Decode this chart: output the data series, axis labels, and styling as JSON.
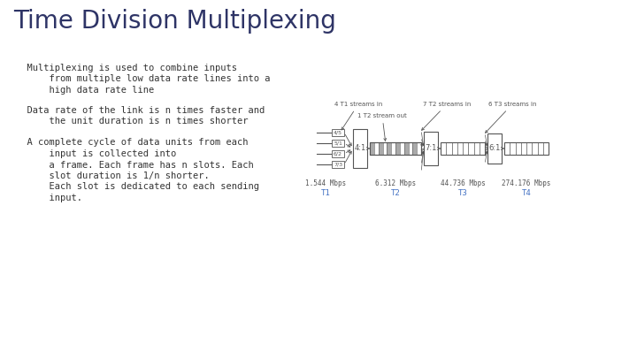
{
  "title": "Time Division Multiplexing",
  "title_color": "#2E3466",
  "title_fontsize": 20,
  "bg_color": "#ffffff",
  "text_color": "#333333",
  "diagram_color": "#555555",
  "bullet1_lines": [
    [
      "  Multiplexing is used to combine inputs",
      false
    ],
    [
      "      from multiple low data rate lines into a",
      true
    ],
    [
      "      high data rate line",
      true
    ]
  ],
  "bullet2_lines": [
    [
      "  Data rate of the link is n times faster and",
      false
    ],
    [
      "      the unit duration is n times shorter",
      true
    ]
  ],
  "bullet3_lines": [
    [
      "  A complete cycle of data units from each",
      false
    ],
    [
      "      input is collected into",
      true
    ],
    [
      "      a frame. Each frame has n slots. Each",
      true
    ],
    [
      "      slot duration is 1/n shorter.",
      true
    ],
    [
      "      Each slot is dedicated to each sending",
      true
    ],
    [
      "      input.",
      true
    ]
  ],
  "stage_labels": [
    "T1",
    "T2",
    "T3",
    "T4"
  ],
  "stage_speeds": [
    "1.544 Mbps",
    "6.312 Mbps",
    "44.736 Mbps",
    "274.176 Mbps"
  ],
  "mux_labels": [
    "4:1",
    "7:1",
    "6:1"
  ],
  "stream_labels": [
    "4 T1 streams in",
    "7 T2 streams in",
    "6 T3 streams in"
  ],
  "t2_label": "1 T2 stream out",
  "input_labels": [
    "4/5",
    "5/1",
    "6/2",
    "7/3"
  ],
  "stage_label_color": "#4472C4"
}
